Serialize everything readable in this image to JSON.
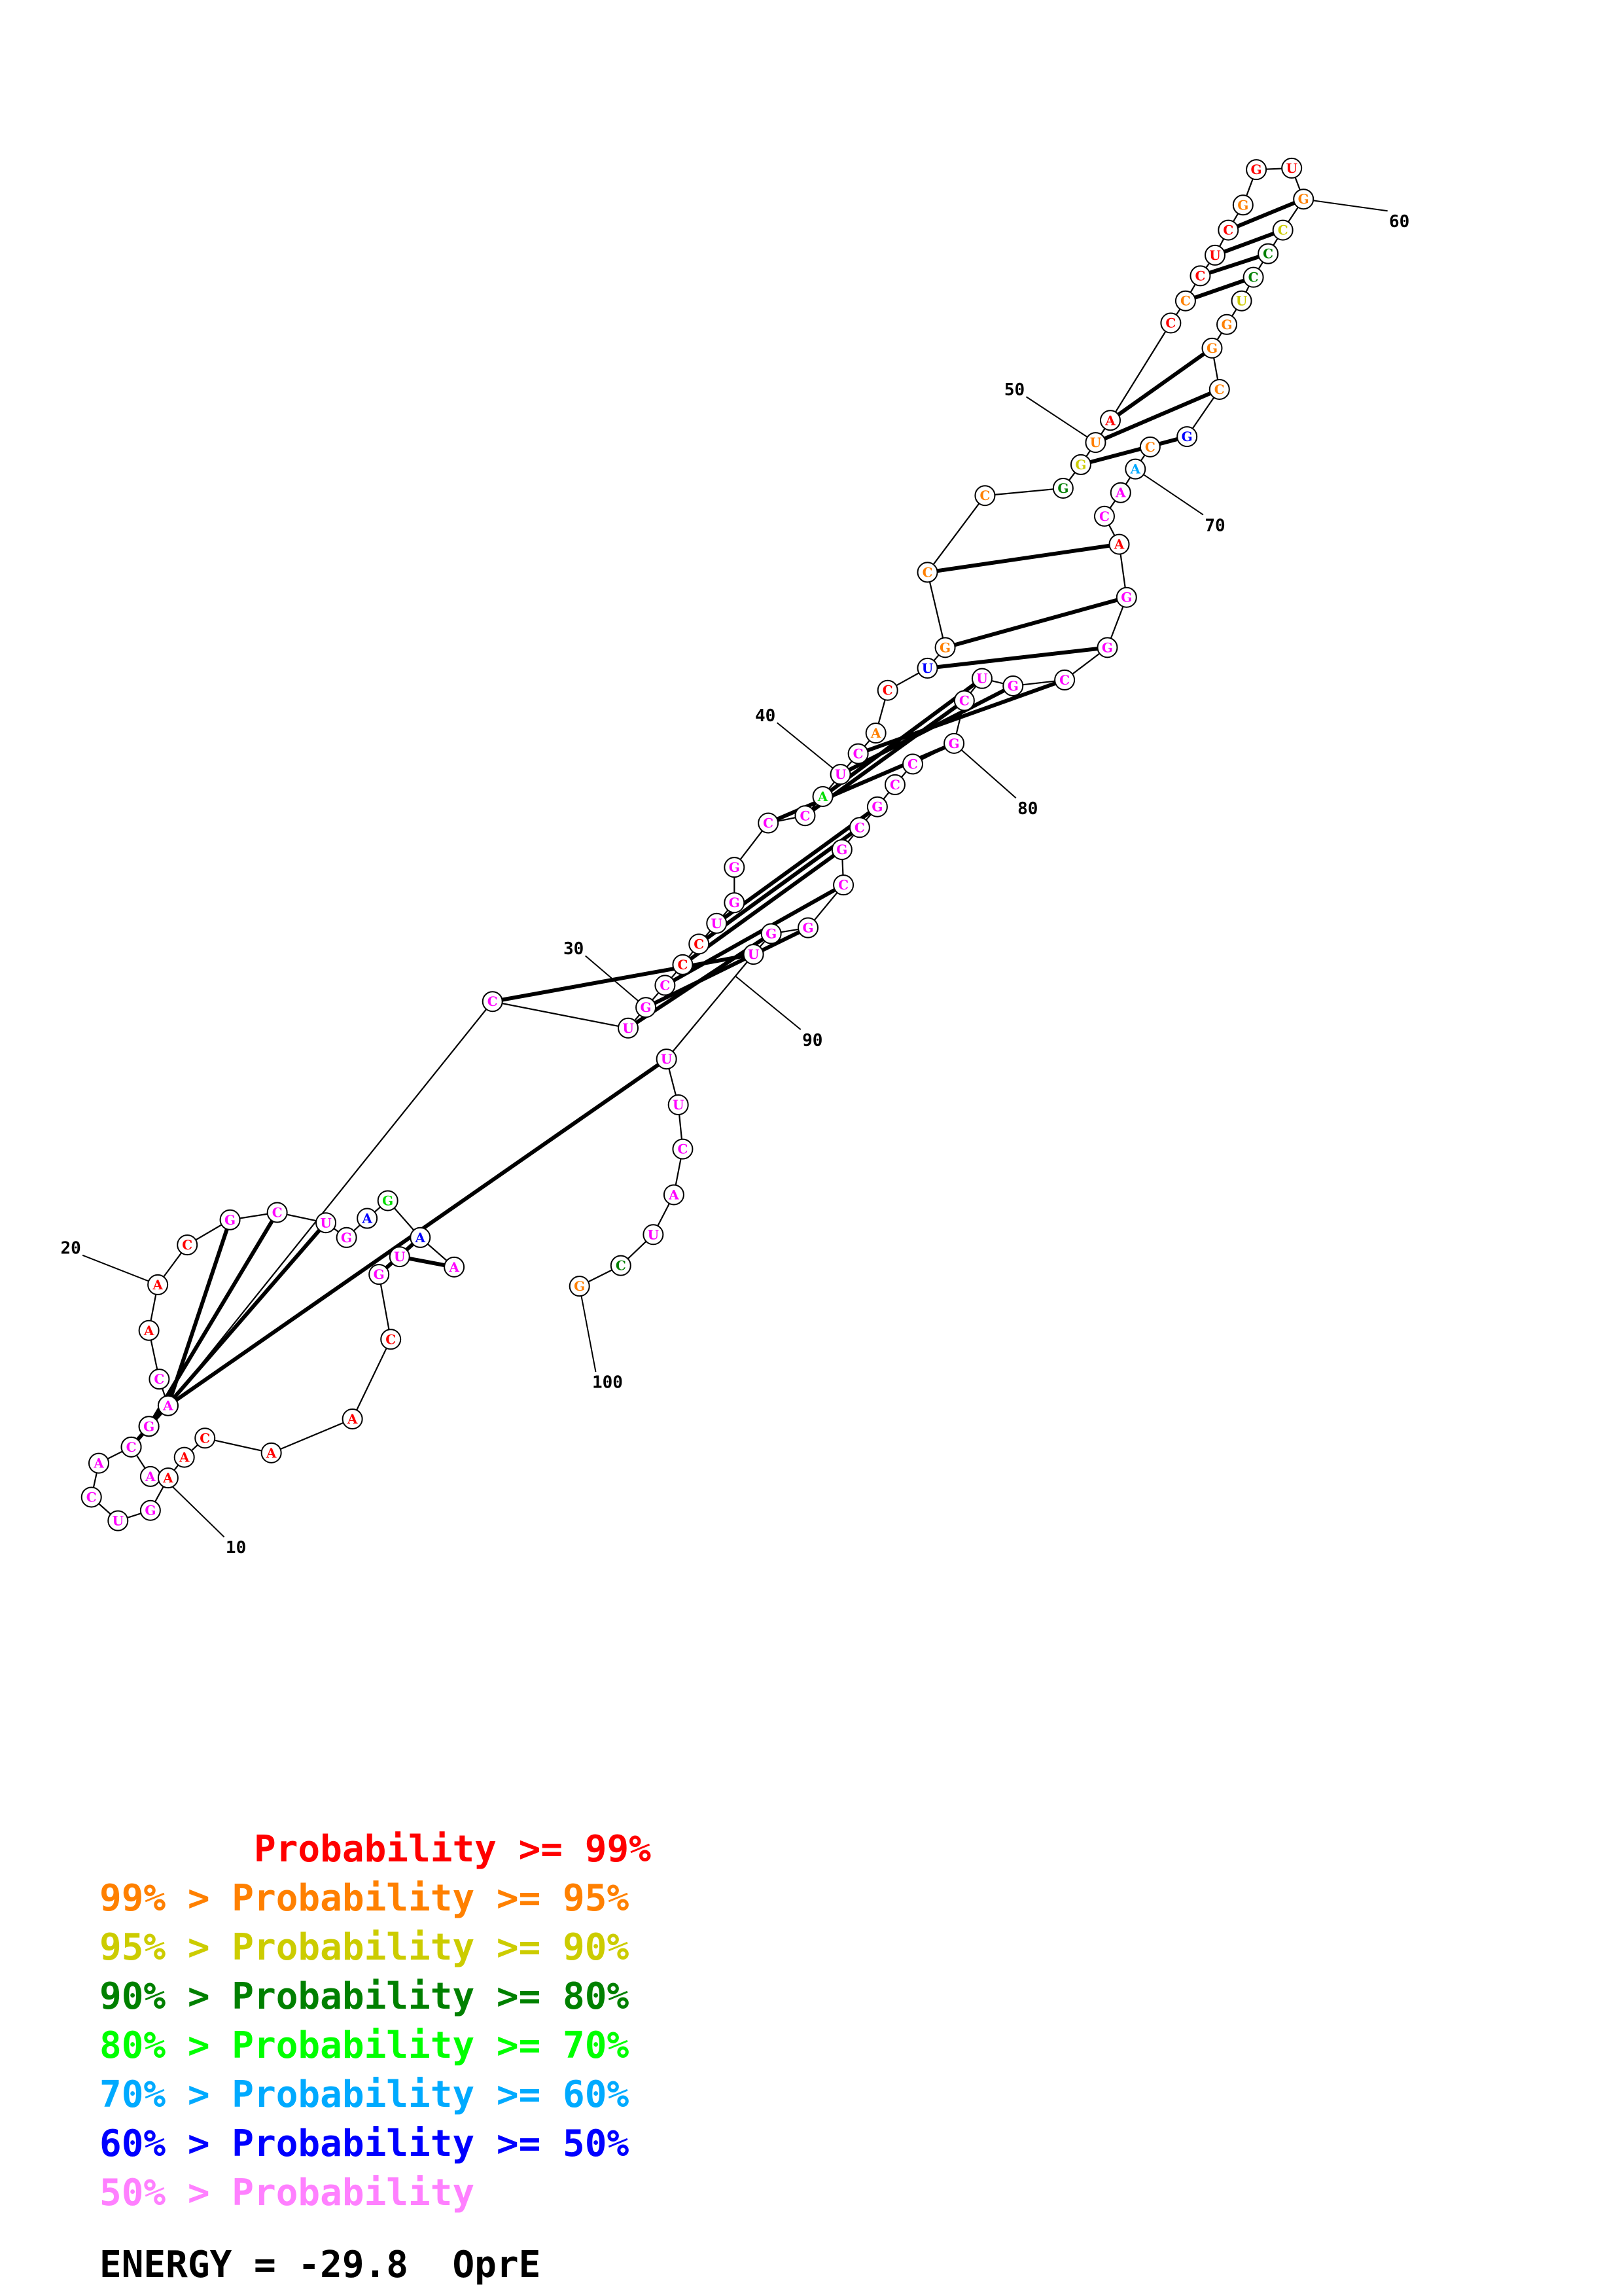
{
  "diagram": {
    "bases": [
      {
        "letter": "A",
        "color": "#ff00ff"
      },
      {
        "letter": "C",
        "color": "#ff00ff"
      },
      {
        "letter": "U",
        "color": "#ff00ff"
      },
      {
        "letter": "G",
        "color": "#ff00ff"
      },
      {
        "letter": "C",
        "color": "#ff00ff"
      },
      {
        "letter": "A",
        "color": "#ff0000"
      },
      {
        "letter": "A",
        "color": "#ff0000"
      },
      {
        "letter": "C",
        "color": "#ff0000"
      },
      {
        "letter": "G",
        "color": "#ff00ff"
      },
      {
        "letter": "C",
        "color": "#ff00ff"
      },
      {
        "letter": "U",
        "color": "#ff00ff"
      },
      {
        "letter": "G",
        "color": "#ff00ff"
      },
      {
        "letter": "A",
        "color": "#0000ff"
      },
      {
        "letter": "G",
        "color": "#00dd00"
      },
      {
        "letter": "A",
        "color": "#0000ff"
      },
      {
        "letter": "A",
        "color": "#ff00ff"
      },
      {
        "letter": "U",
        "color": "#ff00ff"
      },
      {
        "letter": "G",
        "color": "#ff00ff"
      },
      {
        "letter": "C",
        "color": "#ff0000"
      },
      {
        "letter": "A",
        "color": "#ff0000"
      },
      {
        "letter": "A",
        "color": "#ff0000"
      },
      {
        "letter": "C",
        "color": "#ff0000"
      },
      {
        "letter": "A",
        "color": "#ff0000"
      },
      {
        "letter": "A",
        "color": "#ff0000"
      },
      {
        "letter": "G",
        "color": "#ff00ff"
      },
      {
        "letter": "U",
        "color": "#ff00ff"
      },
      {
        "letter": "C",
        "color": "#ff00ff"
      },
      {
        "letter": "A",
        "color": "#ff00ff"
      },
      {
        "letter": "C",
        "color": "#ff00ff"
      },
      {
        "letter": "G",
        "color": "#ff00ff"
      },
      {
        "letter": "A",
        "color": "#ff00ff"
      },
      {
        "letter": "C",
        "color": "#ff00ff"
      },
      {
        "letter": "U",
        "color": "#ff00ff"
      },
      {
        "letter": "G",
        "color": "#ff00ff"
      },
      {
        "letter": "C",
        "color": "#ff00ff"
      },
      {
        "letter": "C",
        "color": "#ff0000"
      },
      {
        "letter": "C",
        "color": "#ff0000"
      },
      {
        "letter": "U",
        "color": "#ff00ff"
      },
      {
        "letter": "G",
        "color": "#ff00ff"
      },
      {
        "letter": "G",
        "color": "#ff00ff"
      },
      {
        "letter": "C",
        "color": "#ff00ff"
      },
      {
        "letter": "C",
        "color": "#ff00ff"
      },
      {
        "letter": "A",
        "color": "#00dd00"
      },
      {
        "letter": "U",
        "color": "#ff00ff"
      },
      {
        "letter": "C",
        "color": "#ff00ff"
      },
      {
        "letter": "A",
        "color": "#ff8000"
      },
      {
        "letter": "C",
        "color": "#ff0000"
      },
      {
        "letter": "U",
        "color": "#0000ff"
      },
      {
        "letter": "G",
        "color": "#ff8000"
      },
      {
        "letter": "C",
        "color": "#ff8000"
      },
      {
        "letter": "C",
        "color": "#ff8000"
      },
      {
        "letter": "G",
        "color": "#008000"
      },
      {
        "letter": "G",
        "color": "#cccc00"
      },
      {
        "letter": "U",
        "color": "#ff8000"
      },
      {
        "letter": "A",
        "color": "#ff0000"
      },
      {
        "letter": "C",
        "color": "#ff0000"
      },
      {
        "letter": "C",
        "color": "#ff8000"
      },
      {
        "letter": "C",
        "color": "#ff0000"
      },
      {
        "letter": "U",
        "color": "#ff0000"
      },
      {
        "letter": "C",
        "color": "#ff0000"
      },
      {
        "letter": "G",
        "color": "#ff8000"
      },
      {
        "letter": "G",
        "color": "#ff0000"
      },
      {
        "letter": "U",
        "color": "#ff0000"
      },
      {
        "letter": "G",
        "color": "#ff8000"
      },
      {
        "letter": "C",
        "color": "#cccc00"
      },
      {
        "letter": "C",
        "color": "#008000"
      },
      {
        "letter": "C",
        "color": "#008000"
      },
      {
        "letter": "U",
        "color": "#cccc00"
      },
      {
        "letter": "G",
        "color": "#ff8000"
      },
      {
        "letter": "G",
        "color": "#ff8000"
      },
      {
        "letter": "C",
        "color": "#ff8000"
      },
      {
        "letter": "G",
        "color": "#0000ff"
      },
      {
        "letter": "C",
        "color": "#ff8000"
      },
      {
        "letter": "A",
        "color": "#00aaff"
      },
      {
        "letter": "A",
        "color": "#ff00ff"
      },
      {
        "letter": "C",
        "color": "#ff00ff"
      },
      {
        "letter": "A",
        "color": "#ff0000"
      },
      {
        "letter": "G",
        "color": "#ff00ff"
      },
      {
        "letter": "G",
        "color": "#ff00ff"
      },
      {
        "letter": "C",
        "color": "#ff00ff"
      },
      {
        "letter": "G",
        "color": "#ff00ff"
      },
      {
        "letter": "U",
        "color": "#ff00ff"
      },
      {
        "letter": "C",
        "color": "#ff00ff"
      },
      {
        "letter": "G",
        "color": "#ff00ff"
      },
      {
        "letter": "C",
        "color": "#ff00ff"
      },
      {
        "letter": "C",
        "color": "#ff00ff"
      },
      {
        "letter": "G",
        "color": "#ff00ff"
      },
      {
        "letter": "C",
        "color": "#ff00ff"
      },
      {
        "letter": "G",
        "color": "#ff00ff"
      },
      {
        "letter": "C",
        "color": "#ff00ff"
      },
      {
        "letter": "G",
        "color": "#ff00ff"
      },
      {
        "letter": "G",
        "color": "#ff00ff"
      },
      {
        "letter": "U",
        "color": "#ff00ff"
      },
      {
        "letter": "U",
        "color": "#ff00ff"
      },
      {
        "letter": "U",
        "color": "#ff00ff"
      },
      {
        "letter": "C",
        "color": "#ff00ff"
      },
      {
        "letter": "A",
        "color": "#ff00ff"
      },
      {
        "letter": "U",
        "color": "#ff00ff"
      },
      {
        "letter": "C",
        "color": "#008000"
      },
      {
        "letter": "G",
        "color": "#ff8000"
      }
    ],
    "pairs": [
      [
        2,
        11
      ],
      [
        3,
        10
      ],
      [
        4,
        9
      ],
      [
        15,
        18
      ],
      [
        16,
        17
      ],
      [
        31,
        94
      ],
      [
        32,
        93
      ],
      [
        33,
        92
      ],
      [
        34,
        91
      ],
      [
        35,
        90
      ],
      [
        36,
        89
      ],
      [
        37,
        88
      ],
      [
        38,
        87
      ],
      [
        41,
        84
      ],
      [
        42,
        83
      ],
      [
        43,
        82
      ],
      [
        44,
        81
      ],
      [
        45,
        80
      ],
      [
        48,
        79
      ],
      [
        49,
        78
      ],
      [
        50,
        77
      ],
      [
        53,
        72
      ],
      [
        54,
        71
      ],
      [
        55,
        70
      ],
      [
        57,
        67
      ],
      [
        58,
        66
      ],
      [
        59,
        65
      ],
      [
        60,
        64
      ]
    ],
    "position_labels": [
      {
        "text": "10",
        "index": 10
      },
      {
        "text": "20",
        "index": 20
      },
      {
        "text": "30",
        "index": 30
      },
      {
        "text": "40",
        "index": 40
      },
      {
        "text": "50",
        "index": 50
      },
      {
        "text": "60",
        "index": 60
      },
      {
        "text": "70",
        "index": 70
      },
      {
        "text": "80",
        "index": 80
      },
      {
        "text": "90",
        "index": 90
      },
      {
        "text": "100",
        "index": 100
      }
    ]
  },
  "legend": [
    {
      "text": "       Probability >= 99%",
      "color": "#ff0000"
    },
    {
      "text": "99% > Probability >= 95%",
      "color": "#ff8000"
    },
    {
      "text": "95% > Probability >= 90%",
      "color": "#cccc00"
    },
    {
      "text": "90% > Probability >= 80%",
      "color": "#008000"
    },
    {
      "text": "80% > Probability >= 70%",
      "color": "#00ff00"
    },
    {
      "text": "70% > Probability >= 60%",
      "color": "#00aaff"
    },
    {
      "text": "60% > Probability >= 50%",
      "color": "#0000ff"
    },
    {
      "text": "50% > Probability",
      "color": "#ff80ff"
    }
  ],
  "footer": {
    "energy_label": "ENERGY = -29.8  OprE"
  }
}
